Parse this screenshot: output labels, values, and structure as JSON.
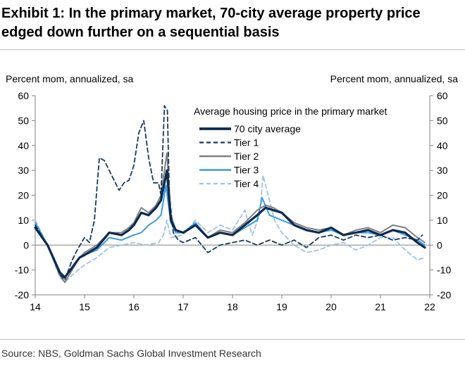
{
  "title": {
    "line1": "Exhibit 1: In the primary market, 70-city average property price",
    "line2": "edged down further on a sequential basis"
  },
  "source": "Source: NBS, Goldman Sachs Global Investment Research",
  "chart_data": {
    "type": "line",
    "ylabel_left": "Percent mom, annualized, sa",
    "ylabel_right": "Percent mom, annualized, sa",
    "ylim": [
      -20,
      60
    ],
    "yticks": [
      -20,
      -10,
      0,
      10,
      20,
      30,
      40,
      50,
      60
    ],
    "xlim": [
      14,
      22
    ],
    "xticks": [
      14,
      15,
      16,
      17,
      18,
      19,
      20,
      21,
      22
    ],
    "legend_title": "Average housing price in the primary market",
    "legend_position": "top-right",
    "series": [
      {
        "name": "70 city average",
        "color": "#0d2a4f",
        "style": "solid-thick",
        "x": [
          14.0,
          14.25,
          14.5,
          14.6,
          14.75,
          14.9,
          15.0,
          15.25,
          15.5,
          15.75,
          15.9,
          16.0,
          16.15,
          16.3,
          16.45,
          16.55,
          16.67,
          16.75,
          16.85,
          17.0,
          17.25,
          17.5,
          17.75,
          18.0,
          18.25,
          18.5,
          18.67,
          18.83,
          19.0,
          19.25,
          19.5,
          19.75,
          20.0,
          20.25,
          20.5,
          20.75,
          21.0,
          21.25,
          21.5,
          21.75,
          21.9
        ],
        "values": [
          7,
          0,
          -11,
          -13,
          -9,
          -5,
          -4,
          -1,
          5,
          4,
          6,
          8,
          13,
          12,
          15,
          18,
          30,
          10,
          6,
          5,
          8,
          3,
          5,
          4,
          8,
          12,
          15,
          14,
          13,
          8,
          6,
          5,
          7,
          4,
          5,
          6,
          4,
          6,
          5,
          1,
          -1
        ]
      },
      {
        "name": "Tier 1",
        "color": "#17375e",
        "style": "dashed",
        "x": [
          14.0,
          14.25,
          14.5,
          14.6,
          14.75,
          14.85,
          15.0,
          15.1,
          15.2,
          15.3,
          15.4,
          15.55,
          15.7,
          15.8,
          15.9,
          16.0,
          16.1,
          16.2,
          16.3,
          16.4,
          16.5,
          16.55,
          16.62,
          16.68,
          16.72,
          16.8,
          16.9,
          17.0,
          17.25,
          17.5,
          17.75,
          18.0,
          18.25,
          18.5,
          18.75,
          19.0,
          19.25,
          19.5,
          19.75,
          20.0,
          20.25,
          20.5,
          20.75,
          21.0,
          21.25,
          21.5,
          21.75,
          21.85
        ],
        "values": [
          8,
          0,
          -12,
          -14,
          -6,
          -2,
          3,
          1,
          10,
          35,
          34,
          28,
          22,
          25,
          26,
          32,
          45,
          50,
          35,
          25,
          25,
          20,
          56,
          54,
          20,
          5,
          2,
          1,
          3,
          -3,
          0,
          1,
          2,
          0,
          2,
          0,
          2,
          -1,
          3,
          4,
          2,
          4,
          3,
          4,
          2,
          3,
          2,
          4
        ]
      },
      {
        "name": "Tier 2",
        "color": "#7f7f7f",
        "style": "solid",
        "x": [
          14.0,
          14.25,
          14.5,
          14.6,
          14.75,
          14.9,
          15.0,
          15.25,
          15.5,
          15.75,
          15.9,
          16.0,
          16.15,
          16.3,
          16.45,
          16.55,
          16.67,
          16.75,
          16.85,
          17.0,
          17.25,
          17.5,
          17.75,
          18.0,
          18.25,
          18.5,
          18.67,
          18.83,
          19.0,
          19.25,
          19.5,
          19.75,
          20.0,
          20.25,
          20.5,
          20.75,
          21.0,
          21.25,
          21.5,
          21.75,
          21.9
        ],
        "values": [
          7,
          0,
          -12,
          -15,
          -10,
          -5,
          -3,
          0,
          5,
          5,
          7,
          9,
          15,
          13,
          16,
          20,
          37,
          12,
          6,
          5,
          8,
          3,
          6,
          5,
          9,
          14,
          16,
          15,
          13,
          9,
          7,
          6,
          7,
          4,
          6,
          7,
          5,
          8,
          7,
          3,
          1
        ]
      },
      {
        "name": "Tier 3",
        "color": "#3a9bde",
        "style": "solid",
        "x": [
          14.0,
          14.25,
          14.5,
          14.6,
          14.75,
          14.9,
          15.0,
          15.25,
          15.5,
          15.75,
          16.0,
          16.15,
          16.3,
          16.45,
          16.55,
          16.65,
          16.75,
          16.85,
          17.0,
          17.25,
          17.5,
          17.75,
          18.0,
          18.25,
          18.5,
          18.6,
          18.75,
          19.0,
          19.25,
          19.5,
          19.75,
          20.0,
          20.25,
          20.5,
          20.75,
          21.0,
          21.25,
          21.5,
          21.75,
          21.9
        ],
        "values": [
          9,
          0,
          -12,
          -13,
          -9,
          -5,
          -4,
          -2,
          3,
          2,
          4,
          5,
          8,
          10,
          12,
          24,
          9,
          5,
          5,
          9,
          3,
          5,
          4,
          7,
          10,
          19,
          12,
          10,
          8,
          6,
          5,
          6,
          4,
          5,
          5,
          4,
          6,
          4,
          2,
          0
        ]
      },
      {
        "name": "Tier 4",
        "color": "#9dc3e6",
        "style": "dashed",
        "x": [
          14.0,
          14.25,
          14.5,
          14.6,
          14.75,
          15.0,
          15.25,
          15.5,
          15.75,
          16.0,
          16.25,
          16.5,
          16.6,
          16.67,
          16.75,
          17.0,
          17.25,
          17.5,
          17.75,
          18.0,
          18.25,
          18.4,
          18.55,
          18.62,
          18.75,
          18.85,
          19.0,
          19.25,
          19.5,
          19.75,
          20.0,
          20.25,
          20.5,
          20.75,
          21.0,
          21.25,
          21.5,
          21.75,
          21.9
        ],
        "values": [
          10,
          0,
          -13,
          -15,
          -12,
          -8,
          -5,
          -1,
          0,
          1,
          0,
          1,
          4,
          10,
          3,
          4,
          10,
          5,
          8,
          6,
          14,
          4,
          12,
          28,
          18,
          10,
          5,
          0,
          -3,
          -2,
          0,
          1,
          -2,
          0,
          3,
          3,
          -2,
          -6,
          -5
        ]
      }
    ]
  }
}
